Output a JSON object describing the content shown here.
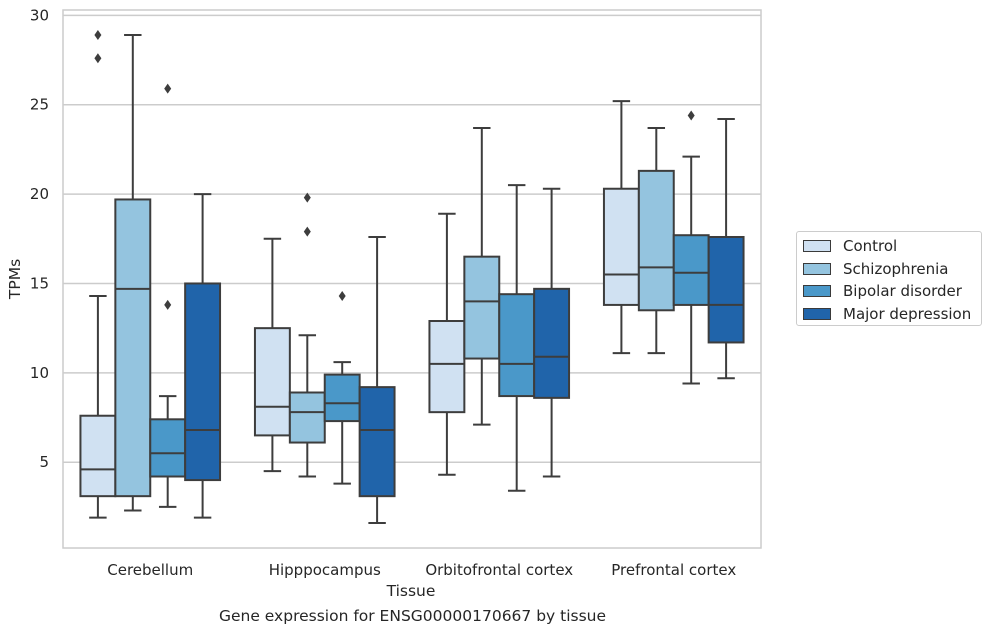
{
  "chart_data": {
    "type": "box",
    "xlabel": "Tissue",
    "ylabel": "TPMs",
    "categories": [
      "Cerebellum",
      "Hipppocampus",
      "Orbitofrontal cortex",
      "Prefrontal cortex"
    ],
    "ylim": [
      0.2,
      30.3
    ],
    "yticks": [
      5,
      10,
      15,
      20,
      25,
      30
    ],
    "grid": "horizontal",
    "legend_position": "center-right",
    "series": [
      {
        "name": "Control",
        "color": "#d0e1f2",
        "boxes": [
          {
            "whislo": 1.9,
            "q1": 3.1,
            "med": 4.6,
            "q3": 7.6,
            "whishi": 14.3,
            "fliers": [
              27.6,
              28.9
            ]
          },
          {
            "whislo": 4.5,
            "q1": 6.5,
            "med": 8.1,
            "q3": 12.5,
            "whishi": 17.5,
            "fliers": []
          },
          {
            "whislo": 4.3,
            "q1": 7.8,
            "med": 10.5,
            "q3": 12.9,
            "whishi": 18.9,
            "fliers": []
          },
          {
            "whislo": 11.1,
            "q1": 13.8,
            "med": 15.5,
            "q3": 20.3,
            "whishi": 25.2,
            "fliers": []
          }
        ]
      },
      {
        "name": "Schizophrenia",
        "color": "#94c4df",
        "boxes": [
          {
            "whislo": 2.3,
            "q1": 3.1,
            "med": 14.7,
            "q3": 19.7,
            "whishi": 28.9,
            "fliers": []
          },
          {
            "whislo": 4.2,
            "q1": 6.1,
            "med": 7.8,
            "q3": 8.9,
            "whishi": 12.1,
            "fliers": [
              17.9,
              19.8
            ]
          },
          {
            "whislo": 7.1,
            "q1": 10.8,
            "med": 14.0,
            "q3": 16.5,
            "whishi": 23.7,
            "fliers": []
          },
          {
            "whislo": 11.1,
            "q1": 13.5,
            "med": 15.9,
            "q3": 21.3,
            "whishi": 23.7,
            "fliers": []
          }
        ]
      },
      {
        "name": "Bipolar disorder",
        "color": "#4a98c9",
        "boxes": [
          {
            "whislo": 2.5,
            "q1": 4.2,
            "med": 5.5,
            "q3": 7.4,
            "whishi": 8.7,
            "fliers": [
              13.8,
              25.9
            ]
          },
          {
            "whislo": 3.8,
            "q1": 7.3,
            "med": 8.3,
            "q3": 9.9,
            "whishi": 10.6,
            "fliers": [
              14.3
            ]
          },
          {
            "whislo": 3.4,
            "q1": 8.7,
            "med": 10.5,
            "q3": 14.4,
            "whishi": 20.5,
            "fliers": []
          },
          {
            "whislo": 9.4,
            "q1": 13.8,
            "med": 15.6,
            "q3": 17.7,
            "whishi": 22.1,
            "fliers": [
              24.4
            ]
          }
        ]
      },
      {
        "name": "Major depression",
        "color": "#2064aa",
        "boxes": [
          {
            "whislo": 1.9,
            "q1": 4.0,
            "med": 6.8,
            "q3": 15.0,
            "whishi": 20.0,
            "fliers": []
          },
          {
            "whislo": 1.6,
            "q1": 3.1,
            "med": 6.8,
            "q3": 9.2,
            "whishi": 17.6,
            "fliers": []
          },
          {
            "whislo": 4.2,
            "q1": 8.6,
            "med": 10.9,
            "q3": 14.7,
            "whishi": 20.3,
            "fliers": []
          },
          {
            "whislo": 9.7,
            "q1": 11.7,
            "med": 13.8,
            "q3": 17.6,
            "whishi": 24.2,
            "fliers": []
          }
        ]
      }
    ],
    "caption": "Gene expression for ENSG00000170667 by tissue"
  }
}
